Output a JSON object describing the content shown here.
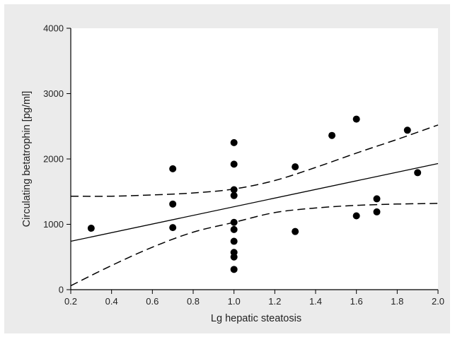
{
  "chart_data": {
    "type": "scatter",
    "xlabel": "Lg hepatic steatosis",
    "ylabel": "Circulating betatrophin [pg/ml]",
    "xlim": [
      0.2,
      2.0
    ],
    "ylim": [
      0,
      4000
    ],
    "x_ticks": [
      "0.2",
      "0.4",
      "0.6",
      "0.8",
      "1.0",
      "1.2",
      "1.4",
      "1.6",
      "1.8",
      "2.0"
    ],
    "y_ticks": [
      "0",
      "1000",
      "2000",
      "3000",
      "4000"
    ],
    "grid": false,
    "legend": "none",
    "colors": {
      "background": "#ebebeb",
      "plot": "#ffffff",
      "marks": "#000000"
    },
    "points": [
      {
        "x": 0.3,
        "y": 940
      },
      {
        "x": 0.7,
        "y": 1850
      },
      {
        "x": 0.7,
        "y": 1310
      },
      {
        "x": 0.7,
        "y": 950
      },
      {
        "x": 1.0,
        "y": 2250
      },
      {
        "x": 1.0,
        "y": 1920
      },
      {
        "x": 1.0,
        "y": 1530
      },
      {
        "x": 1.0,
        "y": 1440
      },
      {
        "x": 1.0,
        "y": 1030
      },
      {
        "x": 1.0,
        "y": 920
      },
      {
        "x": 1.0,
        "y": 740
      },
      {
        "x": 1.0,
        "y": 570
      },
      {
        "x": 1.0,
        "y": 500
      },
      {
        "x": 1.0,
        "y": 310
      },
      {
        "x": 1.3,
        "y": 1880
      },
      {
        "x": 1.3,
        "y": 890
      },
      {
        "x": 1.48,
        "y": 2360
      },
      {
        "x": 1.6,
        "y": 2610
      },
      {
        "x": 1.6,
        "y": 1130
      },
      {
        "x": 1.7,
        "y": 1390
      },
      {
        "x": 1.7,
        "y": 1190
      },
      {
        "x": 1.85,
        "y": 2440
      },
      {
        "x": 1.9,
        "y": 1790
      }
    ],
    "regression_line": {
      "x": [
        0.2,
        2.0
      ],
      "y": [
        740,
        1930
      ]
    },
    "confidence_upper": {
      "x": [
        0.2,
        0.4,
        0.6,
        0.8,
        1.0,
        1.2,
        1.4,
        1.6,
        1.8,
        2.0
      ],
      "y": [
        1430,
        1430,
        1450,
        1480,
        1540,
        1670,
        1870,
        2090,
        2300,
        2520
      ]
    },
    "confidence_lower": {
      "x": [
        0.2,
        0.4,
        0.6,
        0.8,
        1.0,
        1.2,
        1.4,
        1.6,
        1.8,
        2.0
      ],
      "y": [
        60,
        370,
        650,
        880,
        1030,
        1180,
        1250,
        1290,
        1310,
        1320
      ]
    }
  }
}
